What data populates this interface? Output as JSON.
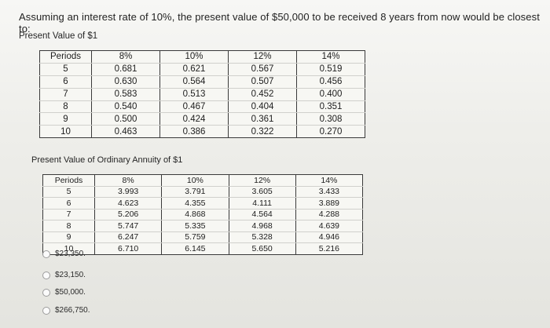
{
  "question": "Assuming an interest rate of 10%, the present value of $50,000 to be received 8 years from now would be closest to:",
  "table1": {
    "title": "Present Value of $1",
    "headers": [
      "Periods",
      "8%",
      "10%",
      "12%",
      "14%"
    ],
    "rows": [
      [
        "5",
        "0.681",
        "0.621",
        "0.567",
        "0.519"
      ],
      [
        "6",
        "0.630",
        "0.564",
        "0.507",
        "0.456"
      ],
      [
        "7",
        "0.583",
        "0.513",
        "0.452",
        "0.400"
      ],
      [
        "8",
        "0.540",
        "0.467",
        "0.404",
        "0.351"
      ],
      [
        "9",
        "0.500",
        "0.424",
        "0.361",
        "0.308"
      ],
      [
        "10",
        "0.463",
        "0.386",
        "0.322",
        "0.270"
      ]
    ]
  },
  "table2": {
    "title": "Present Value of Ordinary Annuity of $1",
    "headers": [
      "Periods",
      "8%",
      "10%",
      "12%",
      "14%"
    ],
    "rows": [
      [
        "5",
        "3.993",
        "3.791",
        "3.605",
        "3.433"
      ],
      [
        "6",
        "4.623",
        "4.355",
        "4.111",
        "3.889"
      ],
      [
        "7",
        "5.206",
        "4.868",
        "4.564",
        "4.288"
      ],
      [
        "8",
        "5.747",
        "5.335",
        "4.968",
        "4.639"
      ],
      [
        "9",
        "6.247",
        "5.759",
        "5.328",
        "4.946"
      ],
      [
        "10",
        "6.710",
        "6.145",
        "5.650",
        "5.216"
      ]
    ]
  },
  "options": [
    {
      "label": "$23,350.",
      "selected": false
    },
    {
      "label": "$23,150.",
      "selected": false
    },
    {
      "label": "$50,000.",
      "selected": false
    },
    {
      "label": "$266,750.",
      "selected": false
    }
  ]
}
